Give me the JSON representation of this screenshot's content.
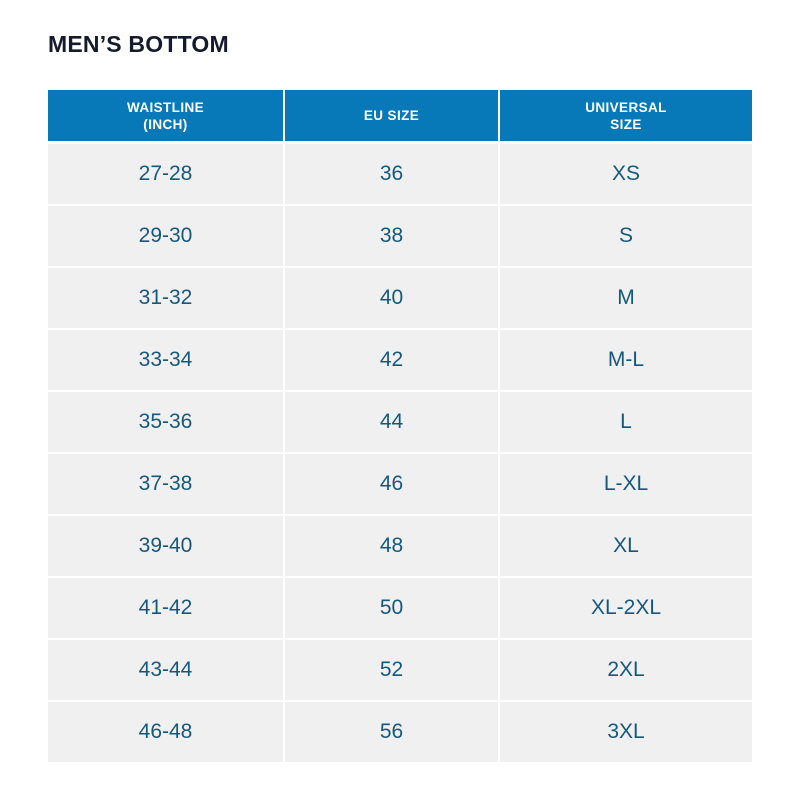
{
  "title": "MEN’S BOTTOM",
  "chart_data": {
    "type": "table",
    "title": "MEN’S BOTTOM",
    "columns": [
      {
        "label": "WAISTLINE (INCH)",
        "line1": "WAISTLINE",
        "line2": "(INCH)"
      },
      {
        "label": "EU SIZE",
        "line1": "EU SIZE",
        "line2": ""
      },
      {
        "label": "UNIVERSAL SIZE",
        "line1": "UNIVERSAL",
        "line2": "SIZE"
      }
    ],
    "rows": [
      [
        "27-28",
        "36",
        "XS"
      ],
      [
        "29-30",
        "38",
        "S"
      ],
      [
        "31-32",
        "40",
        "M"
      ],
      [
        "33-34",
        "42",
        "M-L"
      ],
      [
        "35-36",
        "44",
        "L"
      ],
      [
        "37-38",
        "46",
        "L-XL"
      ],
      [
        "39-40",
        "48",
        "XL"
      ],
      [
        "41-42",
        "50",
        "XL-2XL"
      ],
      [
        "43-44",
        "52",
        "2XL"
      ],
      [
        "46-48",
        "56",
        "3XL"
      ]
    ]
  },
  "colors": {
    "header_bg": "#0779B8",
    "header_text": "#FFFFFF",
    "row_bg": "#F0F0F1",
    "cell_text": "#16587C",
    "title_text": "#151A2D",
    "grid_line": "#FFFFFF",
    "page_bg": "#FFFFFF"
  }
}
